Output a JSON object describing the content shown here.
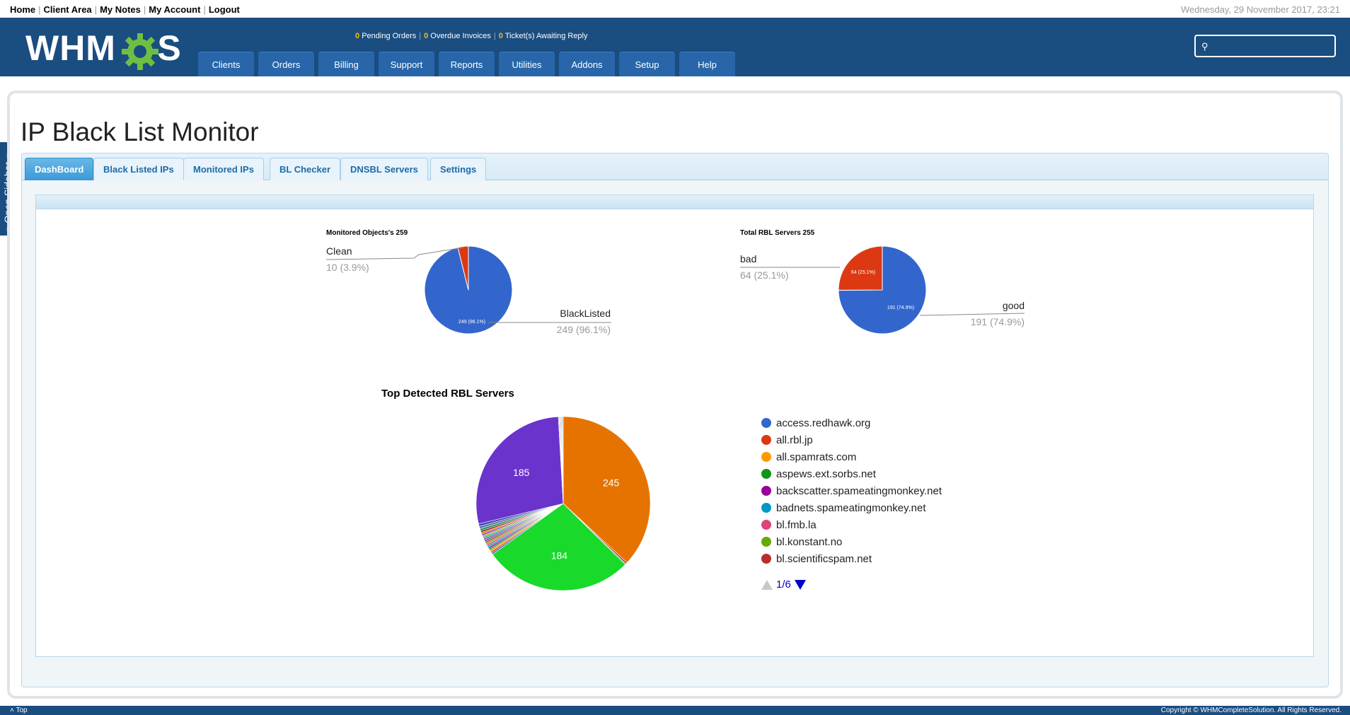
{
  "top": {
    "links": [
      "Home",
      "Client Area",
      "My Notes",
      "My Account",
      "Logout"
    ],
    "date": "Wednesday, 29 November 2017, 23:21"
  },
  "header": {
    "logo_left": "WHM",
    "logo_right": "S",
    "stats": {
      "pending_orders_count": "0",
      "pending_orders_label": "Pending Orders",
      "overdue_invoices_count": "0",
      "overdue_invoices_label": "Overdue Invoices",
      "tickets_count": "0",
      "tickets_label": "Ticket(s) Awaiting Reply"
    },
    "nav": [
      "Clients",
      "Orders",
      "Billing",
      "Support",
      "Reports",
      "Utilities",
      "Addons",
      "Setup",
      "Help"
    ],
    "search_value": "",
    "colors": {
      "header_bg": "#1a4d80",
      "nav_bg": "#2866a9",
      "stat_num": "#f5c000"
    }
  },
  "sidebar": {
    "label": "» Open Sidebar «"
  },
  "page": {
    "title": "IP Black List Monitor",
    "tabs": [
      "DashBoard",
      "Black Listed IPs",
      "Monitored IPs",
      "BL Checker",
      "DNSBL Servers",
      "Settings"
    ],
    "active_tab": "DashBoard"
  },
  "chart_data": [
    {
      "type": "pie",
      "title": "Monitored Objects's 259",
      "slices": [
        {
          "label": "BlackListed",
          "value": 249,
          "percent": "96.1%",
          "color": "#3366cc",
          "display": "249 (96.1%)"
        },
        {
          "label": "Clean",
          "value": 10,
          "percent": "3.9%",
          "color": "#dc3912",
          "display": "10 (3.9%)"
        }
      ]
    },
    {
      "type": "pie",
      "title": "Total RBL Servers 255",
      "slices": [
        {
          "label": "good",
          "value": 191,
          "percent": "74.9%",
          "color": "#3366cc",
          "display": "191 (74.9%)"
        },
        {
          "label": "bad",
          "value": 64,
          "percent": "25.1%",
          "color": "#dc3912",
          "display": "64 (25.1%)"
        }
      ]
    },
    {
      "type": "pie",
      "title": "Top Detected RBL Servers",
      "slices": [
        {
          "value": 245,
          "color": "#e67300",
          "label": "245"
        },
        {
          "value": 2,
          "color": "#b82e2e",
          "label": ""
        },
        {
          "value": 1,
          "color": "#316395",
          "label": ""
        },
        {
          "value": 184,
          "color": "#19d92a",
          "label": "184"
        },
        {
          "value": 2,
          "color": "#3366cc",
          "label": ""
        },
        {
          "value": 2,
          "color": "#dc3912",
          "label": ""
        },
        {
          "value": 2,
          "color": "#ff9900",
          "label": ""
        },
        {
          "value": 2,
          "color": "#109618",
          "label": ""
        },
        {
          "value": 2,
          "color": "#990099",
          "label": ""
        },
        {
          "value": 2,
          "color": "#0099c6",
          "label": ""
        },
        {
          "value": 2,
          "color": "#dd4477",
          "label": ""
        },
        {
          "value": 2,
          "color": "#66aa00",
          "label": ""
        },
        {
          "value": 2,
          "color": "#b82e2e",
          "label": ""
        },
        {
          "value": 2,
          "color": "#316395",
          "label": ""
        },
        {
          "value": 2,
          "color": "#994499",
          "label": ""
        },
        {
          "value": 2,
          "color": "#22aa99",
          "label": ""
        },
        {
          "value": 2,
          "color": "#aaaa11",
          "label": ""
        },
        {
          "value": 2,
          "color": "#6633cc",
          "label": ""
        },
        {
          "value": 2,
          "color": "#e67300",
          "label": ""
        },
        {
          "value": 2,
          "color": "#8b0707",
          "label": ""
        },
        {
          "value": 3,
          "color": "#329262",
          "label": ""
        },
        {
          "value": 3,
          "color": "#5574a6",
          "label": ""
        },
        {
          "value": 3,
          "color": "#3b3eac",
          "label": ""
        },
        {
          "value": 185,
          "color": "#6a33cc",
          "label": "185"
        },
        {
          "value": 1,
          "color": "#aaaaaa",
          "label": ""
        },
        {
          "value": 1,
          "color": "#cccccc",
          "label": ""
        },
        {
          "value": 1,
          "color": "#999999",
          "label": ""
        },
        {
          "value": 1,
          "color": "#bbbbbb",
          "label": ""
        },
        {
          "value": 1,
          "color": "#d0d0d0",
          "label": ""
        },
        {
          "value": 1,
          "color": "#aaaaaa",
          "label": ""
        }
      ],
      "legend": [
        {
          "label": "access.redhawk.org",
          "color": "#3366cc"
        },
        {
          "label": "all.rbl.jp",
          "color": "#dc3912"
        },
        {
          "label": "all.spamrats.com",
          "color": "#ff9900"
        },
        {
          "label": "aspews.ext.sorbs.net",
          "color": "#109618"
        },
        {
          "label": "backscatter.spameatingmonkey.net",
          "color": "#990099"
        },
        {
          "label": "badnets.spameatingmonkey.net",
          "color": "#0099c6"
        },
        {
          "label": "bl.fmb.la",
          "color": "#dd4477"
        },
        {
          "label": "bl.konstant.no",
          "color": "#66aa00"
        },
        {
          "label": "bl.scientificspam.net",
          "color": "#b82e2e"
        }
      ],
      "pager": "1/6"
    }
  ],
  "footer": {
    "top_link": "Top",
    "copyright": "Copyright © WHMCompleteSolution. All Rights Reserved."
  }
}
